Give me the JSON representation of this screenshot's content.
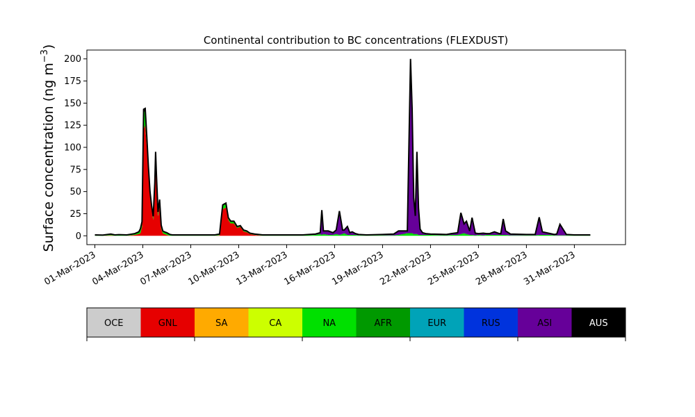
{
  "chart_data": {
    "type": "area",
    "stacked": true,
    "title": "Continental contribution to BC concentrations (FLEXDUST)",
    "ylabel": "Surface concentration (ng m",
    "ylabel_sup": "−3",
    "ylabel_close": ")",
    "ylim": [
      -10,
      210
    ],
    "yticks": [
      0,
      25,
      50,
      75,
      100,
      125,
      150,
      175,
      200
    ],
    "xlim_days": [
      -0.5,
      33.2
    ],
    "xticks": [
      "01-Mar-2023",
      "04-Mar-2023",
      "07-Mar-2023",
      "10-Mar-2023",
      "13-Mar-2023",
      "16-Mar-2023",
      "19-Mar-2023",
      "22-Mar-2023",
      "25-Mar-2023",
      "28-Mar-2023",
      "31-Mar-2023"
    ],
    "xtick_days": [
      0,
      3,
      6,
      9,
      12,
      15,
      18,
      21,
      24,
      27,
      30
    ],
    "grid": false,
    "legend": {
      "placement": "bottom",
      "entries": [
        {
          "label": "OCE",
          "color": "#cccccc",
          "text_color": "#000000"
        },
        {
          "label": "GNL",
          "color": "#e60000",
          "text_color": "#000000"
        },
        {
          "label": "SA",
          "color": "#ffaa00",
          "text_color": "#000000"
        },
        {
          "label": "CA",
          "color": "#ccff00",
          "text_color": "#000000"
        },
        {
          "label": "NA",
          "color": "#00e000",
          "text_color": "#000000"
        },
        {
          "label": "AFR",
          "color": "#009900",
          "text_color": "#000000"
        },
        {
          "label": "EUR",
          "color": "#00a3b8",
          "text_color": "#000000"
        },
        {
          "label": "RUS",
          "color": "#0033dd",
          "text_color": "#000000"
        },
        {
          "label": "ASI",
          "color": "#660099",
          "text_color": "#000000"
        },
        {
          "label": "AUS",
          "color": "#000000",
          "text_color": "#ffffff"
        }
      ]
    },
    "x": [
      0.0,
      0.5,
      1.0,
      1.25,
      1.5,
      2.0,
      2.5,
      2.75,
      2.85,
      2.95,
      3.05,
      3.15,
      3.25,
      3.35,
      3.45,
      3.55,
      3.65,
      3.75,
      3.8,
      3.85,
      3.95,
      4.05,
      4.15,
      4.25,
      4.35,
      4.5,
      4.7,
      4.85,
      5.0,
      5.5,
      6.0,
      7.0,
      7.5,
      7.8,
      8.0,
      8.2,
      8.35,
      8.5,
      8.7,
      8.9,
      9.1,
      9.3,
      9.5,
      9.7,
      10.0,
      10.5,
      11.0,
      12.0,
      13.0,
      13.8,
      14.1,
      14.2,
      14.3,
      14.6,
      14.9,
      15.1,
      15.3,
      15.5,
      15.6,
      15.8,
      15.95,
      16.1,
      16.3,
      16.5,
      17.0,
      18.0,
      18.7,
      19.0,
      19.3,
      19.55,
      19.75,
      19.85,
      19.95,
      20.05,
      20.15,
      20.25,
      20.35,
      20.5,
      20.7,
      21.0,
      22.0,
      22.3,
      22.7,
      22.9,
      23.1,
      23.25,
      23.45,
      23.6,
      23.8,
      24.0,
      24.3,
      24.5,
      24.7,
      25.0,
      25.3,
      25.4,
      25.55,
      25.7,
      26.0,
      27.0,
      27.3,
      27.55,
      27.8,
      28.0,
      28.5,
      28.75,
      28.9,
      29.1,
      29.5,
      30.0,
      31.0
    ],
    "series": [
      {
        "name": "GNL",
        "values": [
          0,
          0,
          0.5,
          0,
          0,
          0,
          1,
          2,
          3,
          10,
          120,
          125,
          100,
          70,
          45,
          30,
          18,
          50,
          80,
          60,
          22,
          35,
          8,
          3,
          2,
          1,
          0,
          0,
          0,
          0,
          0,
          0,
          0,
          0.5,
          30,
          32,
          18,
          14,
          14,
          9,
          10,
          5,
          4,
          2,
          1,
          0,
          0,
          0,
          0,
          0,
          0,
          0,
          0,
          0,
          0,
          0,
          0,
          0,
          0,
          0,
          0,
          0,
          0,
          0,
          0,
          0,
          0,
          0,
          0,
          0,
          0,
          0,
          0,
          0,
          0,
          0,
          0,
          0,
          0,
          0,
          0,
          0,
          0,
          0,
          0,
          0,
          0,
          0,
          0,
          0,
          0,
          0,
          0,
          0,
          0,
          0,
          0,
          0,
          0,
          0,
          0,
          0,
          0,
          0,
          0,
          0,
          0,
          0,
          0,
          0,
          0
        ]
      },
      {
        "name": "NA",
        "values": [
          0.5,
          0.3,
          1,
          0.5,
          0.8,
          0.5,
          1,
          2,
          4,
          5,
          20,
          16,
          10,
          6,
          4,
          3,
          3,
          8,
          12,
          8,
          4,
          5,
          3,
          2,
          2,
          2,
          1,
          0.5,
          0.5,
          0.5,
          0.5,
          0.5,
          0.5,
          1,
          4,
          4,
          2,
          2,
          2,
          1,
          1,
          1,
          1,
          0.5,
          0.5,
          0.5,
          0.5,
          0.5,
          0.5,
          1,
          2,
          1,
          2,
          1,
          1,
          2,
          1,
          2,
          3,
          1,
          1,
          1,
          1,
          0.5,
          0.5,
          0.5,
          0.5,
          1,
          2,
          3,
          3,
          3,
          2,
          2,
          2,
          1,
          1,
          1,
          1,
          1,
          0.5,
          1,
          1,
          2,
          3,
          2,
          1,
          1,
          0.5,
          1,
          0.5,
          1,
          1,
          1,
          1,
          1,
          1,
          1,
          0.5,
          0.5,
          0.5,
          0.5,
          1,
          1,
          1,
          0.5,
          0.5,
          0.5,
          0.5,
          0.5,
          0.5
        ]
      },
      {
        "name": "ASI",
        "values": [
          0,
          0,
          0,
          0,
          0,
          0,
          0,
          0,
          0,
          0,
          0,
          0,
          0,
          0,
          0,
          0,
          0,
          0,
          0,
          0,
          0,
          0,
          0,
          0,
          0,
          0,
          0,
          0,
          0,
          0,
          0,
          0,
          0,
          0,
          0,
          0,
          0,
          0,
          0,
          0,
          0,
          0,
          0,
          0,
          0,
          0,
          0,
          0,
          0,
          0.5,
          1,
          27,
          3,
          4,
          2,
          4,
          26,
          4,
          3,
          9,
          2,
          3,
          1,
          0.5,
          0,
          0.5,
          1,
          4,
          3,
          2,
          195,
          140,
          40,
          20,
          92,
          30,
          6,
          2,
          1,
          0.5,
          0.5,
          1,
          2,
          23,
          10,
          14,
          4,
          19,
          2,
          1,
          2,
          1,
          1,
          3,
          1,
          1,
          17,
          4,
          1,
          0.5,
          0.5,
          0.5,
          19,
          3,
          1,
          0.5,
          1,
          12,
          0.5,
          0,
          0
        ]
      },
      {
        "name": "AUS",
        "values": [
          0.5,
          0.5,
          0.5,
          0.5,
          0.5,
          0.5,
          0.5,
          0.5,
          1,
          1,
          3,
          3,
          2,
          2,
          1,
          1,
          1,
          2,
          3,
          2,
          1,
          1,
          1,
          0.5,
          0.5,
          0.5,
          0.5,
          0.5,
          0.5,
          0.5,
          0.5,
          0.5,
          0.5,
          0.5,
          1,
          1,
          0.5,
          0.5,
          0.5,
          0.5,
          0.5,
          0.5,
          0.5,
          0.5,
          0.5,
          0.5,
          0.5,
          0.5,
          0.5,
          0.5,
          0.5,
          1,
          0.5,
          0.5,
          0.5,
          0.5,
          1,
          0.5,
          0.5,
          0.5,
          0.5,
          0.5,
          0.5,
          0.5,
          0.5,
          0.5,
          0.5,
          0.5,
          0.5,
          0.5,
          2,
          1,
          1,
          0.5,
          1,
          0.5,
          0.5,
          0.5,
          0.5,
          0.5,
          0.5,
          0.5,
          0.5,
          1,
          0.5,
          0.5,
          0.5,
          0.5,
          0.5,
          0.5,
          0.5,
          0.5,
          0.5,
          0.5,
          0.5,
          0.5,
          1,
          0.5,
          0.5,
          0.5,
          0.5,
          0.5,
          1,
          0.5,
          0.5,
          0.5,
          0.5,
          0.5,
          0.5,
          0.5,
          0.5
        ]
      }
    ]
  }
}
